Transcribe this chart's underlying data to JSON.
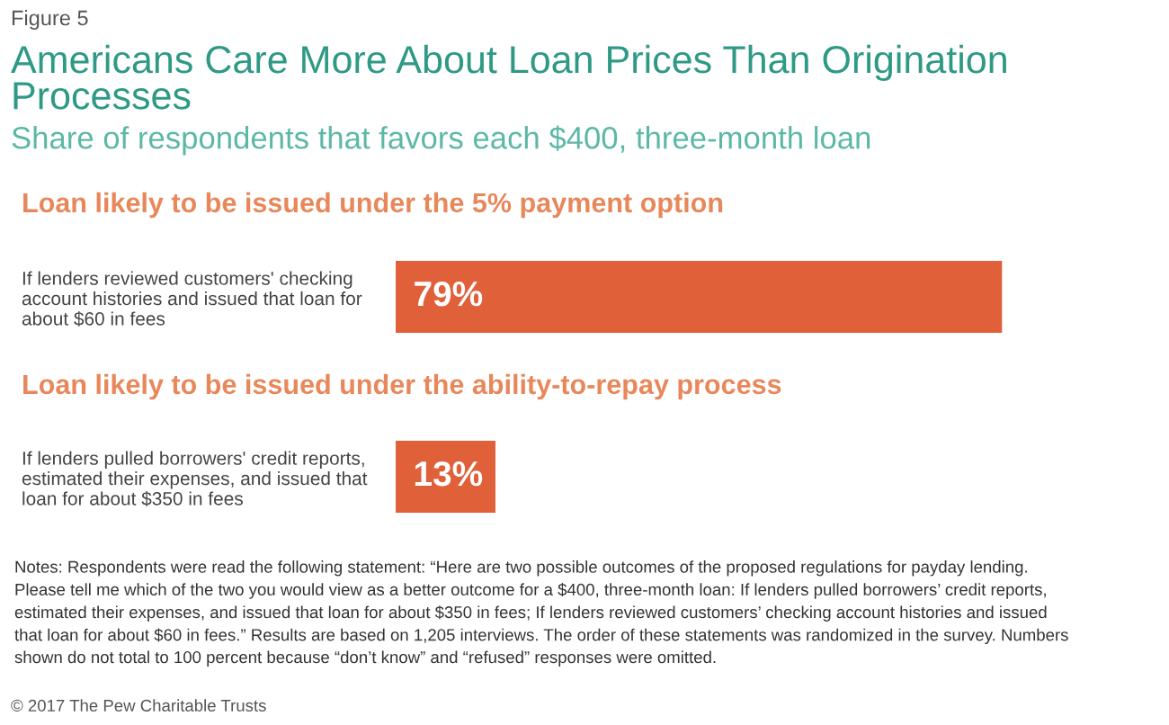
{
  "chart_data": {
    "type": "bar",
    "orientation": "horizontal",
    "title": "Americans Care More About Loan Prices Than Origination\nProcesses",
    "subtitle": "Share of respondents that favors each $400, three-month loan",
    "categories": [
      "If lenders reviewed customers' checking\naccount histories and issued that loan for\nabout $60 in fees",
      "If lenders pulled borrowers' credit reports,\nestimated their expenses, and issued that\nloan for about $350 in fees"
    ],
    "values": [
      79,
      13
    ],
    "colors": [
      "#e0603a",
      "#e0603a"
    ],
    "value_labels": [
      "79%",
      "13%"
    ],
    "tick_labels": "y",
    "grid": false,
    "legend": false,
    "annotations": [
      "Figure 5",
      "Loan likely to be issued under the 5% payment option",
      "Loan likely to be issued under the ability-to-repay process",
      "Notes: Respondents were read the following statement: “Here are two possible outcomes of the proposed regulations for payday lending.\nPlease tell me which of the two you would view as a better outcome for a $400, three-month loan: If lenders pulled borrowers’ credit reports,\nestimated their expenses, and issued that loan for about $350 in fees; If lenders reviewed customers’ checking account histories and issued\nthat loan for about $60 in fees.” Results are based on 1,205 interviews. The order of these statements was randomized in the survey. Numbers\nshown do not total to 100 percent because “don’t know” and “refused” responses were omitted.",
      "© 2017 The Pew Charitable Trusts"
    ]
  }
}
